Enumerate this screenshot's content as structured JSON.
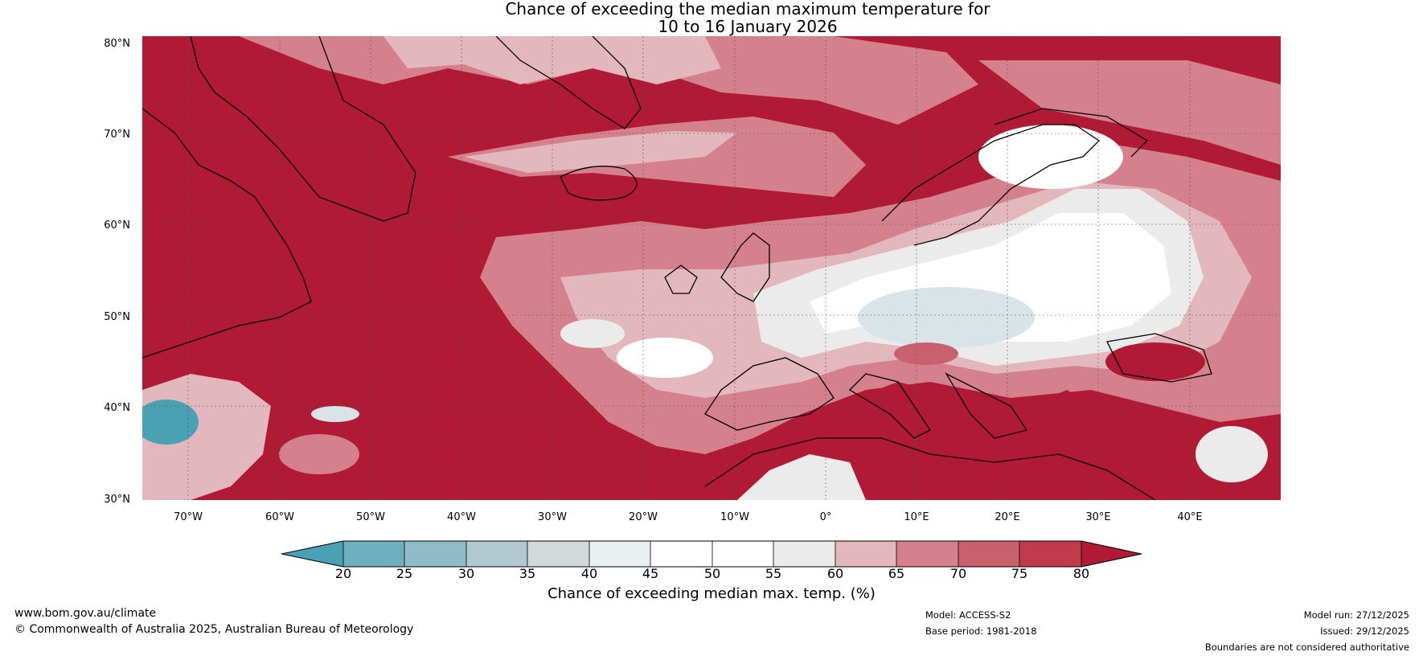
{
  "title_line1": "Chance of exceeding the median maximum temperature for",
  "title_line2": "10 to 16 January 2026",
  "lat_labels": [
    "80°N",
    "70°N",
    "60°N",
    "50°N",
    "40°N",
    "30°N"
  ],
  "lon_labels": [
    "70°W",
    "60°W",
    "50°W",
    "40°W",
    "30°W",
    "20°W",
    "10°W",
    "0°",
    "10°E",
    "20°E",
    "30°E",
    "40°E"
  ],
  "colorbar": {
    "label": "Chance of exceeding median max. temp. (%)",
    "ticks": [
      "20",
      "25",
      "30",
      "35",
      "40",
      "45",
      "50",
      "55",
      "60",
      "65",
      "70",
      "75",
      "80"
    ],
    "colors": [
      "#4aa1b3",
      "#6fb0bf",
      "#8fbcc8",
      "#afc9cf",
      "#d3d9da",
      "#eaf0f1",
      "#ffffff",
      "#ffffff",
      "#ecebec",
      "#e2b8be",
      "#d5818d",
      "#c9616c",
      "#c03c4d",
      "#b01a35"
    ]
  },
  "map_colors": {
    "deep_red": "#b01a35",
    "red": "#c9616c",
    "pink": "#d5818d",
    "light_pink": "#e2b8be",
    "white": "#ffffff",
    "grey": "#ecebec",
    "light_blue": "#d8e4e7",
    "blue": "#4aa1b3"
  },
  "footer": {
    "website": "www.bom.gov.au/climate",
    "copyright": "© Commonwealth of Australia 2025, Australian Bureau of Meteorology",
    "model": "Model: ACCESS-S2",
    "base_period": "Base period: 1981-2018",
    "model_run": "Model run: 27/12/2025",
    "issued": "Issued: 29/12/2025",
    "disclaimer": "Boundaries are not considered authoritative"
  }
}
